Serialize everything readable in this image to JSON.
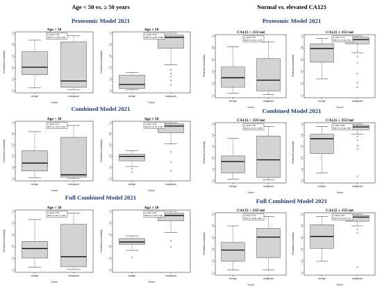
{
  "left_title": "Age < 50 vs. ≥ 50 years",
  "right_title": "Normal vs. elevated CA125",
  "row_titles": {
    "left": [
      "Proteomic Model 2021",
      "Combined Model 2021",
      "Full Combined Model 2021"
    ],
    "right": [
      "Proteomic Model 2021",
      "Combined Model 2021",
      "Full Combined Model 2021"
    ]
  },
  "colors": {
    "box_fill": "#d3d3d3",
    "row_title": "#1f3d6e"
  },
  "chart_data": [
    {
      "id": "L1a",
      "type": "boxplot",
      "title": "Age < 50",
      "ylabel": "Predicted probability",
      "xlabel": "Tumor",
      "categories": [
        "benign",
        "malignant"
      ],
      "ylim": [
        0,
        1
      ],
      "yticks": [
        0.0,
        0.2,
        0.4,
        0.6,
        0.8,
        1.0
      ],
      "legend": [
        "p-value: 0.00",
        "95% CI: (0.20, 0.30)"
      ],
      "boxes": [
        {
          "q1": 0.28,
          "median": 0.41,
          "q3": 0.68,
          "whisker_low": 0.05,
          "whisker_high": 0.88,
          "outliers": []
        },
        {
          "q1": 0.06,
          "median": 0.17,
          "q3": 0.85,
          "whisker_low": 0.02,
          "whisker_high": 0.96,
          "outliers": []
        }
      ]
    },
    {
      "id": "L1b",
      "type": "boxplot",
      "title": "Age ≥ 50",
      "ylabel": "Predicted probability",
      "xlabel": "Tumor",
      "categories": [
        "benign",
        "malignant"
      ],
      "ylim": [
        0,
        1
      ],
      "yticks": [
        0.0,
        0.2,
        0.4,
        0.6,
        0.8,
        1.0
      ],
      "legend": [
        "p-value: 0.00",
        "95% CI: (0.38, 0.48)"
      ],
      "boxes": [
        {
          "q1": 0.04,
          "median": 0.11,
          "q3": 0.27,
          "whisker_low": 0.02,
          "whisker_high": 0.32,
          "outliers": []
        },
        {
          "q1": 0.74,
          "median": 0.93,
          "q3": 0.97,
          "whisker_low": 0.45,
          "whisker_high": 1.0,
          "outliers": [
            0.36,
            0.3,
            0.25,
            0.18,
            0.1
          ]
        }
      ]
    },
    {
      "id": "R1a",
      "type": "boxplot",
      "title": "CA125 < 35U/ml",
      "ylabel": "Predicted probability",
      "xlabel": "Tumor",
      "categories": [
        "benign",
        "malignant"
      ],
      "ylim": [
        0,
        1
      ],
      "yticks": [
        0.0,
        0.2,
        0.4,
        0.6,
        0.8,
        1.0
      ],
      "legend": [
        "p-value: 0.67",
        "95% CI: (0.21, 0.75)"
      ],
      "boxes": [
        {
          "q1": 0.14,
          "median": 0.3,
          "q3": 0.48,
          "whisker_low": 0.04,
          "whisker_high": 0.82,
          "outliers": []
        },
        {
          "q1": 0.08,
          "median": 0.26,
          "q3": 0.62,
          "whisker_low": 0.02,
          "whisker_high": 0.9,
          "outliers": []
        }
      ]
    },
    {
      "id": "R1b",
      "type": "boxplot",
      "title": "CA125 ≥ 35U/ml",
      "ylabel": "Predicted probability",
      "xlabel": "Tumor",
      "categories": [
        "benign",
        "malignant"
      ],
      "ylim": [
        0,
        1
      ],
      "yticks": [
        0.0,
        0.2,
        0.4,
        0.6,
        0.8,
        1.0
      ],
      "legend": [
        "p-value: 0.72",
        "95% CI: (0.30, 0.71)"
      ],
      "boxes": [
        {
          "q1": 0.56,
          "median": 0.79,
          "q3": 0.87,
          "whisker_low": 0.28,
          "whisker_high": 0.96,
          "outliers": []
        },
        {
          "q1": 0.87,
          "median": 0.94,
          "q3": 0.98,
          "whisker_low": 0.72,
          "whisker_high": 1.0,
          "outliers": [
            0.66,
            0.55,
            0.37,
            0.22,
            0.14
          ]
        }
      ]
    },
    {
      "id": "L2a",
      "type": "boxplot",
      "title": "Age < 50",
      "ylabel": "Predicted probability",
      "xlabel": "Tumor",
      "categories": [
        "benign",
        "malignant"
      ],
      "ylim": [
        0,
        1
      ],
      "yticks": [
        0.0,
        0.2,
        0.4,
        0.6,
        0.8,
        1.0
      ],
      "legend": [
        "p-value: 0.57",
        "95% CI: (0.12, 0.42)"
      ],
      "boxes": [
        {
          "q1": 0.14,
          "median": 0.28,
          "q3": 0.5,
          "whisker_low": 0.02,
          "whisker_high": 0.84,
          "outliers": []
        },
        {
          "q1": 0.03,
          "median": 0.07,
          "q3": 0.74,
          "whisker_low": 0.01,
          "whisker_high": 0.95,
          "outliers": []
        }
      ]
    },
    {
      "id": "L2b",
      "type": "boxplot",
      "title": "Age ≥ 50",
      "ylabel": "Predicted probability",
      "xlabel": "Tumor",
      "categories": [
        "benign",
        "malignant"
      ],
      "ylim": [
        0,
        1
      ],
      "yticks": [
        0.0,
        0.2,
        0.4,
        0.6,
        0.8,
        1.0
      ],
      "legend": [
        "p-value: 0.00",
        "95% CI: (0.41, 0.61)"
      ],
      "boxes": [
        {
          "q1": 0.32,
          "median": 0.4,
          "q3": 0.44,
          "whisker_low": 0.22,
          "whisker_high": 0.5,
          "outliers": [
            0.18,
            0.12
          ]
        },
        {
          "q1": 0.82,
          "median": 0.94,
          "q3": 0.98,
          "whisker_low": 0.62,
          "whisker_high": 1.0,
          "outliers": [
            0.48,
            0.3,
            0.14
          ]
        }
      ]
    },
    {
      "id": "R2a",
      "type": "boxplot",
      "title": "CA125 < 35U/ml",
      "ylabel": "Predicted probability",
      "xlabel": "Tumor",
      "categories": [
        "benign",
        "malignant"
      ],
      "ylim": [
        0,
        1
      ],
      "yticks": [
        0.0,
        0.2,
        0.4,
        0.6,
        0.8,
        1.0
      ],
      "legend": [
        "p-value: 0.60",
        "95% CI: (0.17, 0.58)"
      ],
      "boxes": [
        {
          "q1": 0.14,
          "median": 0.34,
          "q3": 0.44,
          "whisker_low": 0.03,
          "whisker_high": 0.75,
          "outliers": []
        },
        {
          "q1": 0.06,
          "median": 0.37,
          "q3": 0.79,
          "whisker_low": 0.02,
          "whisker_high": 0.96,
          "outliers": []
        }
      ]
    },
    {
      "id": "R2b",
      "type": "boxplot",
      "title": "CA125 ≥ 35U/ml",
      "ylabel": "Predicted probability",
      "xlabel": "Tumor",
      "categories": [
        "benign",
        "malignant"
      ],
      "ylim": [
        0,
        1
      ],
      "yticks": [
        0.0,
        0.2,
        0.4,
        0.6,
        0.8,
        1.0
      ],
      "legend": [
        "p-value: 0.69",
        "95% CI: (0.35, 0.78)"
      ],
      "boxes": [
        {
          "q1": 0.48,
          "median": 0.74,
          "q3": 0.82,
          "whisker_low": 0.14,
          "whisker_high": 0.96,
          "outliers": []
        },
        {
          "q1": 0.9,
          "median": 0.95,
          "q3": 0.98,
          "whisker_low": 0.82,
          "whisker_high": 1.0,
          "outliers": [
            0.78,
            0.72,
            0.62,
            0.56,
            0.08
          ]
        }
      ]
    },
    {
      "id": "L3a",
      "type": "boxplot",
      "title": "Age < 50",
      "ylabel": "Predicted probability",
      "xlabel": "Tumor",
      "categories": [
        "benign",
        "malignant"
      ],
      "ylim": [
        0,
        1
      ],
      "yticks": [
        0.0,
        0.2,
        0.4,
        0.6,
        0.8,
        1.0
      ],
      "legend": [
        "p-value: 0.51",
        "95% CI: (0.17, 0.66)"
      ],
      "boxes": [
        {
          "q1": 0.21,
          "median": 0.37,
          "q3": 0.49,
          "whisker_low": 0.05,
          "whisker_high": 0.86,
          "outliers": []
        },
        {
          "q1": 0.06,
          "median": 0.23,
          "q3": 0.78,
          "whisker_low": 0.02,
          "whisker_high": 0.97,
          "outliers": []
        }
      ]
    },
    {
      "id": "L3b",
      "type": "boxplot",
      "title": "Age ≥ 50",
      "ylabel": "Predicted probability",
      "xlabel": "Tumor",
      "categories": [
        "benign",
        "malignant"
      ],
      "ylim": [
        0,
        1
      ],
      "yticks": [
        0.0,
        0.2,
        0.4,
        0.6,
        0.8,
        1.0
      ],
      "legend": [
        "p-value: 0.00",
        "95% CI: (0.36, 0.54)"
      ],
      "boxes": [
        {
          "q1": 0.44,
          "median": 0.48,
          "q3": 0.54,
          "whisker_low": 0.34,
          "whisker_high": 0.58,
          "outliers": [
            0.22
          ]
        },
        {
          "q1": 0.84,
          "median": 0.93,
          "q3": 0.97,
          "whisker_low": 0.64,
          "whisker_high": 1.0,
          "outliers": [
            0.5,
            0.4
          ]
        }
      ]
    },
    {
      "id": "R3a",
      "type": "boxplot",
      "title": "CA125 < 35U/ml",
      "ylabel": "Predicted probability",
      "xlabel": "Tumor",
      "categories": [
        "benign",
        "malignant"
      ],
      "ylim": [
        0,
        1
      ],
      "yticks": [
        0.0,
        0.2,
        0.4,
        0.6,
        0.8,
        1.0
      ],
      "legend": [
        "p-value: 0.07",
        "95% CI: (0.30, 0.81)"
      ],
      "boxes": [
        {
          "q1": 0.2,
          "median": 0.39,
          "q3": 0.52,
          "whisker_low": 0.05,
          "whisker_high": 0.8,
          "outliers": []
        },
        {
          "q1": 0.26,
          "median": 0.61,
          "q3": 0.76,
          "whisker_low": 0.05,
          "whisker_high": 0.96,
          "outliers": []
        }
      ]
    },
    {
      "id": "R3b",
      "type": "boxplot",
      "title": "CA125 ≥ 35U/ml",
      "ylabel": "Predicted probability",
      "xlabel": "Tumor",
      "categories": [
        "benign",
        "malignant"
      ],
      "ylim": [
        0,
        1
      ],
      "yticks": [
        0.0,
        0.2,
        0.4,
        0.6,
        0.8,
        1.0
      ],
      "legend": [
        "p-value: 0.57",
        "95% CI: (0.27, 0.77)"
      ],
      "boxes": [
        {
          "q1": 0.42,
          "median": 0.62,
          "q3": 0.82,
          "whisker_low": 0.2,
          "whisker_high": 0.96,
          "outliers": []
        },
        {
          "q1": 0.88,
          "median": 0.95,
          "q3": 0.98,
          "whisker_low": 0.8,
          "whisker_high": 1.0,
          "outliers": [
            0.74,
            0.68,
            0.1
          ]
        }
      ]
    }
  ]
}
